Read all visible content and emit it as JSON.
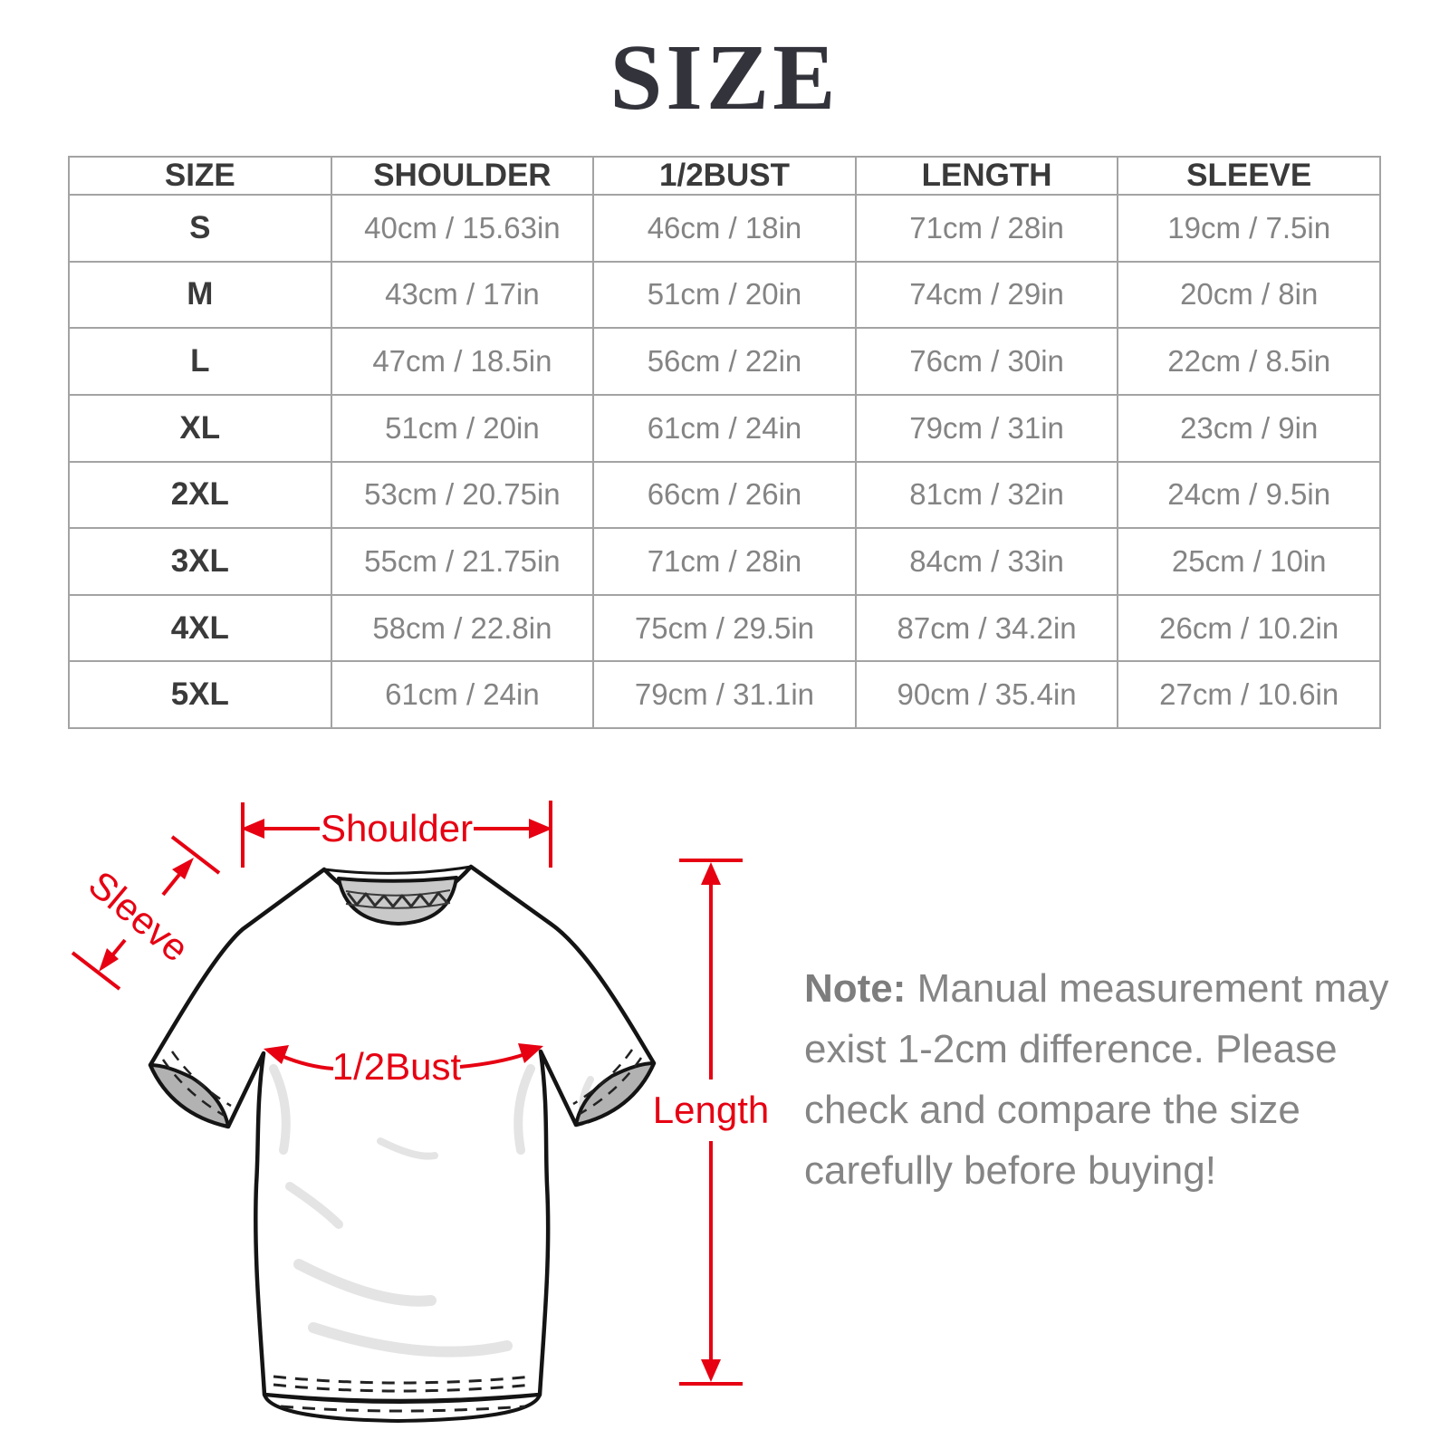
{
  "title": "SIZE",
  "table": {
    "headers": [
      "SIZE",
      "SHOULDER",
      "1/2BUST",
      "LENGTH",
      "SLEEVE"
    ],
    "rows": [
      [
        "S",
        "40cm / 15.63in",
        "46cm / 18in",
        "71cm / 28in",
        "19cm / 7.5in"
      ],
      [
        "M",
        "43cm / 17in",
        "51cm / 20in",
        "74cm / 29in",
        "20cm / 8in"
      ],
      [
        "L",
        "47cm / 18.5in",
        "56cm / 22in",
        "76cm / 30in",
        "22cm / 8.5in"
      ],
      [
        "XL",
        "51cm / 20in",
        "61cm / 24in",
        "79cm / 31in",
        "23cm / 9in"
      ],
      [
        "2XL",
        "53cm / 20.75in",
        "66cm / 26in",
        "81cm / 32in",
        "24cm / 9.5in"
      ],
      [
        "3XL",
        "55cm / 21.75in",
        "71cm / 28in",
        "84cm / 33in",
        "25cm / 10in"
      ],
      [
        "4XL",
        "58cm / 22.8in",
        "75cm / 29.5in",
        "87cm / 34.2in",
        "26cm / 10.2in"
      ],
      [
        "5XL",
        "61cm / 24in",
        "79cm / 31.1in",
        "90cm / 35.4in",
        "27cm / 10.6in"
      ]
    ]
  },
  "diagram": {
    "labels": {
      "shoulder": "Shoulder",
      "sleeve": "Sleeve",
      "bust": "1/2Bust",
      "length": "Length"
    },
    "accent_color": "#e60012"
  },
  "note": {
    "label": "Note:",
    "line1": "Manual measurement may",
    "line2": "exist 1-2cm difference. Please",
    "line3": "check and compare the size",
    "line4": "carefully before buying!"
  }
}
